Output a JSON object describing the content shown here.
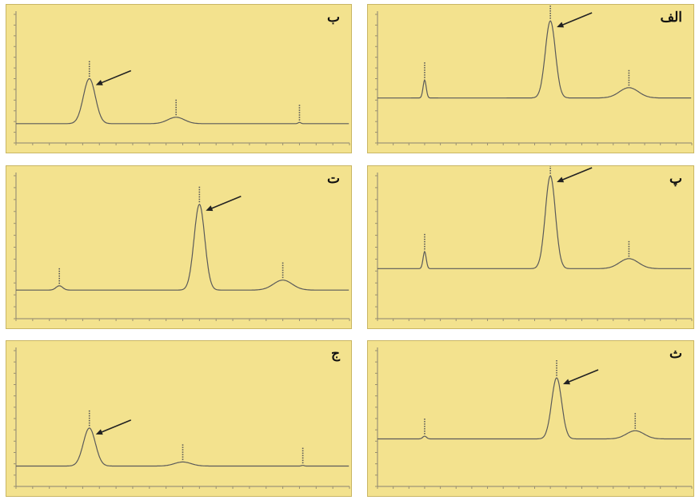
{
  "figure": {
    "background": "#ffffff",
    "panel_color": "#f3e28e",
    "trace_color": "#5a5a5a",
    "arrow_color": "#222222"
  },
  "chart_data": [
    {
      "id": "panel-alef",
      "type": "line",
      "label": "الف",
      "xlim": [
        0,
        100
      ],
      "ylim": [
        0,
        100
      ],
      "baseline": 35,
      "arrow_peak": 1,
      "peaks": [
        {
          "x": 15,
          "h": 14,
          "w": 0.5
        },
        {
          "x": 55,
          "h": 60,
          "w": 1.6
        },
        {
          "x": 80,
          "h": 8,
          "w": 3
        }
      ]
    },
    {
      "id": "panel-be",
      "type": "line",
      "label": "ب",
      "xlim": [
        0,
        100
      ],
      "ylim": [
        0,
        100
      ],
      "baseline": 15,
      "arrow_peak": 0,
      "peaks": [
        {
          "x": 22,
          "h": 35,
          "w": 1.8
        },
        {
          "x": 48,
          "h": 5,
          "w": 2.5
        },
        {
          "x": 85,
          "h": 1,
          "w": 0.4
        }
      ]
    },
    {
      "id": "panel-pe",
      "type": "line",
      "label": "پ",
      "xlim": [
        0,
        100
      ],
      "ylim": [
        0,
        100
      ],
      "baseline": 35,
      "arrow_peak": 1,
      "peaks": [
        {
          "x": 15,
          "h": 12,
          "w": 0.5
        },
        {
          "x": 55,
          "h": 65,
          "w": 1.6
        },
        {
          "x": 80,
          "h": 7,
          "w": 3
        }
      ]
    },
    {
      "id": "panel-te",
      "type": "line",
      "label": "ت",
      "xlim": [
        0,
        100
      ],
      "ylim": [
        0,
        100
      ],
      "baseline": 20,
      "arrow_peak": 1,
      "peaks": [
        {
          "x": 13,
          "h": 3,
          "w": 1
        },
        {
          "x": 55,
          "h": 60,
          "w": 1.6
        },
        {
          "x": 80,
          "h": 7,
          "w": 2.8
        }
      ]
    },
    {
      "id": "panel-jim",
      "type": "line",
      "label": "ج",
      "xlim": [
        0,
        100
      ],
      "ylim": [
        0,
        100
      ],
      "baseline": 15,
      "arrow_peak": 0,
      "peaks": [
        {
          "x": 22,
          "h": 28,
          "w": 1.8
        },
        {
          "x": 50,
          "h": 3,
          "w": 2.5
        },
        {
          "x": 86,
          "h": 0.5,
          "w": 0.4
        }
      ]
    },
    {
      "id": "panel-the",
      "type": "line",
      "label": "ث",
      "xlim": [
        0,
        100
      ],
      "ylim": [
        0,
        100
      ],
      "baseline": 35,
      "arrow_peak": 1,
      "peaks": [
        {
          "x": 15,
          "h": 2,
          "w": 0.6
        },
        {
          "x": 57,
          "h": 45,
          "w": 1.6
        },
        {
          "x": 82,
          "h": 6,
          "w": 2.8
        }
      ]
    }
  ]
}
